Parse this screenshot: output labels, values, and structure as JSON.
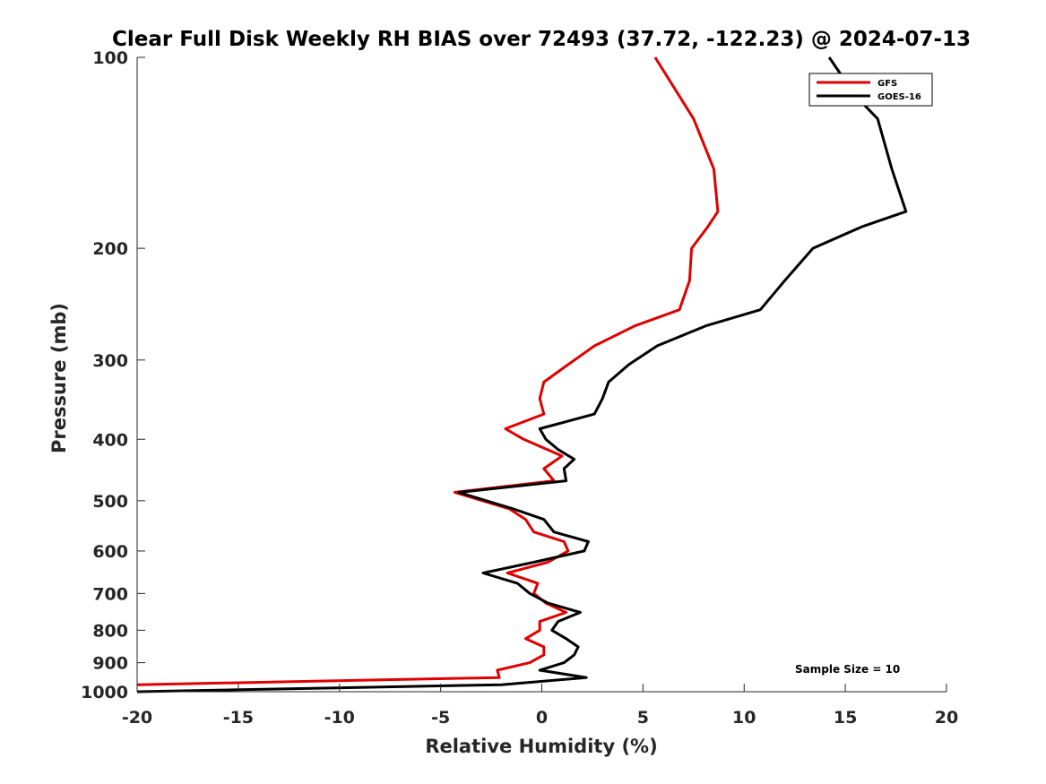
{
  "chart_data": {
    "type": "line",
    "title": "Clear Full Disk Weekly RH BIAS over 72493 (37.72, -122.23) @ 2024-07-13",
    "xlabel": "Relative Humidity (%)",
    "ylabel": "Pressure (mb)",
    "xlim": [
      -20,
      20
    ],
    "ylim": [
      1000,
      100
    ],
    "y_scale": "log",
    "x_ticks": [
      "-20",
      "-15",
      "-10",
      "-5",
      "0",
      "5",
      "10",
      "15",
      "20"
    ],
    "y_ticks": [
      "100",
      "200",
      "300",
      "400",
      "500",
      "600",
      "700",
      "800",
      "900",
      "1000"
    ],
    "grid": false,
    "legend_position": "top-right",
    "annotation": "Sample Size = 10",
    "series": [
      {
        "name": "GFS",
        "color": "#e00000",
        "points": [
          {
            "p": 100,
            "x": 5.6
          },
          {
            "p": 125,
            "x": 7.5
          },
          {
            "p": 150,
            "x": 8.5
          },
          {
            "p": 175,
            "x": 8.7
          },
          {
            "p": 185,
            "x": 8.2
          },
          {
            "p": 200,
            "x": 7.4
          },
          {
            "p": 225,
            "x": 7.3
          },
          {
            "p": 250,
            "x": 6.8
          },
          {
            "p": 265,
            "x": 4.6
          },
          {
            "p": 285,
            "x": 2.6
          },
          {
            "p": 305,
            "x": 1.3
          },
          {
            "p": 325,
            "x": 0.1
          },
          {
            "p": 345,
            "x": -0.1
          },
          {
            "p": 365,
            "x": 0.1
          },
          {
            "p": 385,
            "x": -1.8
          },
          {
            "p": 400,
            "x": -0.9
          },
          {
            "p": 425,
            "x": 1.0
          },
          {
            "p": 445,
            "x": 0.1
          },
          {
            "p": 465,
            "x": 0.6
          },
          {
            "p": 485,
            "x": -4.3
          },
          {
            "p": 515,
            "x": -1.6
          },
          {
            "p": 535,
            "x": -0.8
          },
          {
            "p": 560,
            "x": -0.4
          },
          {
            "p": 580,
            "x": 1.1
          },
          {
            "p": 600,
            "x": 1.3
          },
          {
            "p": 625,
            "x": 0.3
          },
          {
            "p": 650,
            "x": -1.7
          },
          {
            "p": 675,
            "x": -0.2
          },
          {
            "p": 700,
            "x": -0.4
          },
          {
            "p": 725,
            "x": 0.2
          },
          {
            "p": 750,
            "x": 1.2
          },
          {
            "p": 775,
            "x": -0.1
          },
          {
            "p": 800,
            "x": -0.1
          },
          {
            "p": 825,
            "x": -0.8
          },
          {
            "p": 850,
            "x": 0.1
          },
          {
            "p": 875,
            "x": 0.1
          },
          {
            "p": 900,
            "x": -0.6
          },
          {
            "p": 925,
            "x": -2.2
          },
          {
            "p": 950,
            "x": -2.1
          },
          {
            "p": 975,
            "x": -20
          }
        ]
      },
      {
        "name": "GOES-16",
        "color": "#000000",
        "points": [
          {
            "p": 100,
            "x": 14.2
          },
          {
            "p": 115,
            "x": 15.5
          },
          {
            "p": 125,
            "x": 16.6
          },
          {
            "p": 150,
            "x": 17.3
          },
          {
            "p": 175,
            "x": 18.0
          },
          {
            "p": 185,
            "x": 15.8
          },
          {
            "p": 200,
            "x": 13.4
          },
          {
            "p": 225,
            "x": 12.0
          },
          {
            "p": 250,
            "x": 10.8
          },
          {
            "p": 265,
            "x": 8.1
          },
          {
            "p": 285,
            "x": 5.7
          },
          {
            "p": 305,
            "x": 4.3
          },
          {
            "p": 325,
            "x": 3.3
          },
          {
            "p": 345,
            "x": 3.0
          },
          {
            "p": 365,
            "x": 2.6
          },
          {
            "p": 385,
            "x": -0.1
          },
          {
            "p": 400,
            "x": 0.2
          },
          {
            "p": 415,
            "x": 0.8
          },
          {
            "p": 430,
            "x": 1.6
          },
          {
            "p": 445,
            "x": 1.1
          },
          {
            "p": 465,
            "x": 1.2
          },
          {
            "p": 485,
            "x": -4.1
          },
          {
            "p": 515,
            "x": -1.4
          },
          {
            "p": 535,
            "x": 0.1
          },
          {
            "p": 560,
            "x": 0.6
          },
          {
            "p": 580,
            "x": 2.3
          },
          {
            "p": 600,
            "x": 2.1
          },
          {
            "p": 625,
            "x": -0.4
          },
          {
            "p": 650,
            "x": -2.9
          },
          {
            "p": 675,
            "x": -1.2
          },
          {
            "p": 700,
            "x": -0.6
          },
          {
            "p": 725,
            "x": 0.3
          },
          {
            "p": 750,
            "x": 1.9
          },
          {
            "p": 775,
            "x": 0.8
          },
          {
            "p": 800,
            "x": 0.5
          },
          {
            "p": 825,
            "x": 1.2
          },
          {
            "p": 850,
            "x": 1.8
          },
          {
            "p": 875,
            "x": 1.6
          },
          {
            "p": 900,
            "x": 1.1
          },
          {
            "p": 925,
            "x": -0.1
          },
          {
            "p": 950,
            "x": 2.2
          },
          {
            "p": 975,
            "x": -2.0
          },
          {
            "p": 1000,
            "x": -20
          }
        ]
      }
    ]
  }
}
